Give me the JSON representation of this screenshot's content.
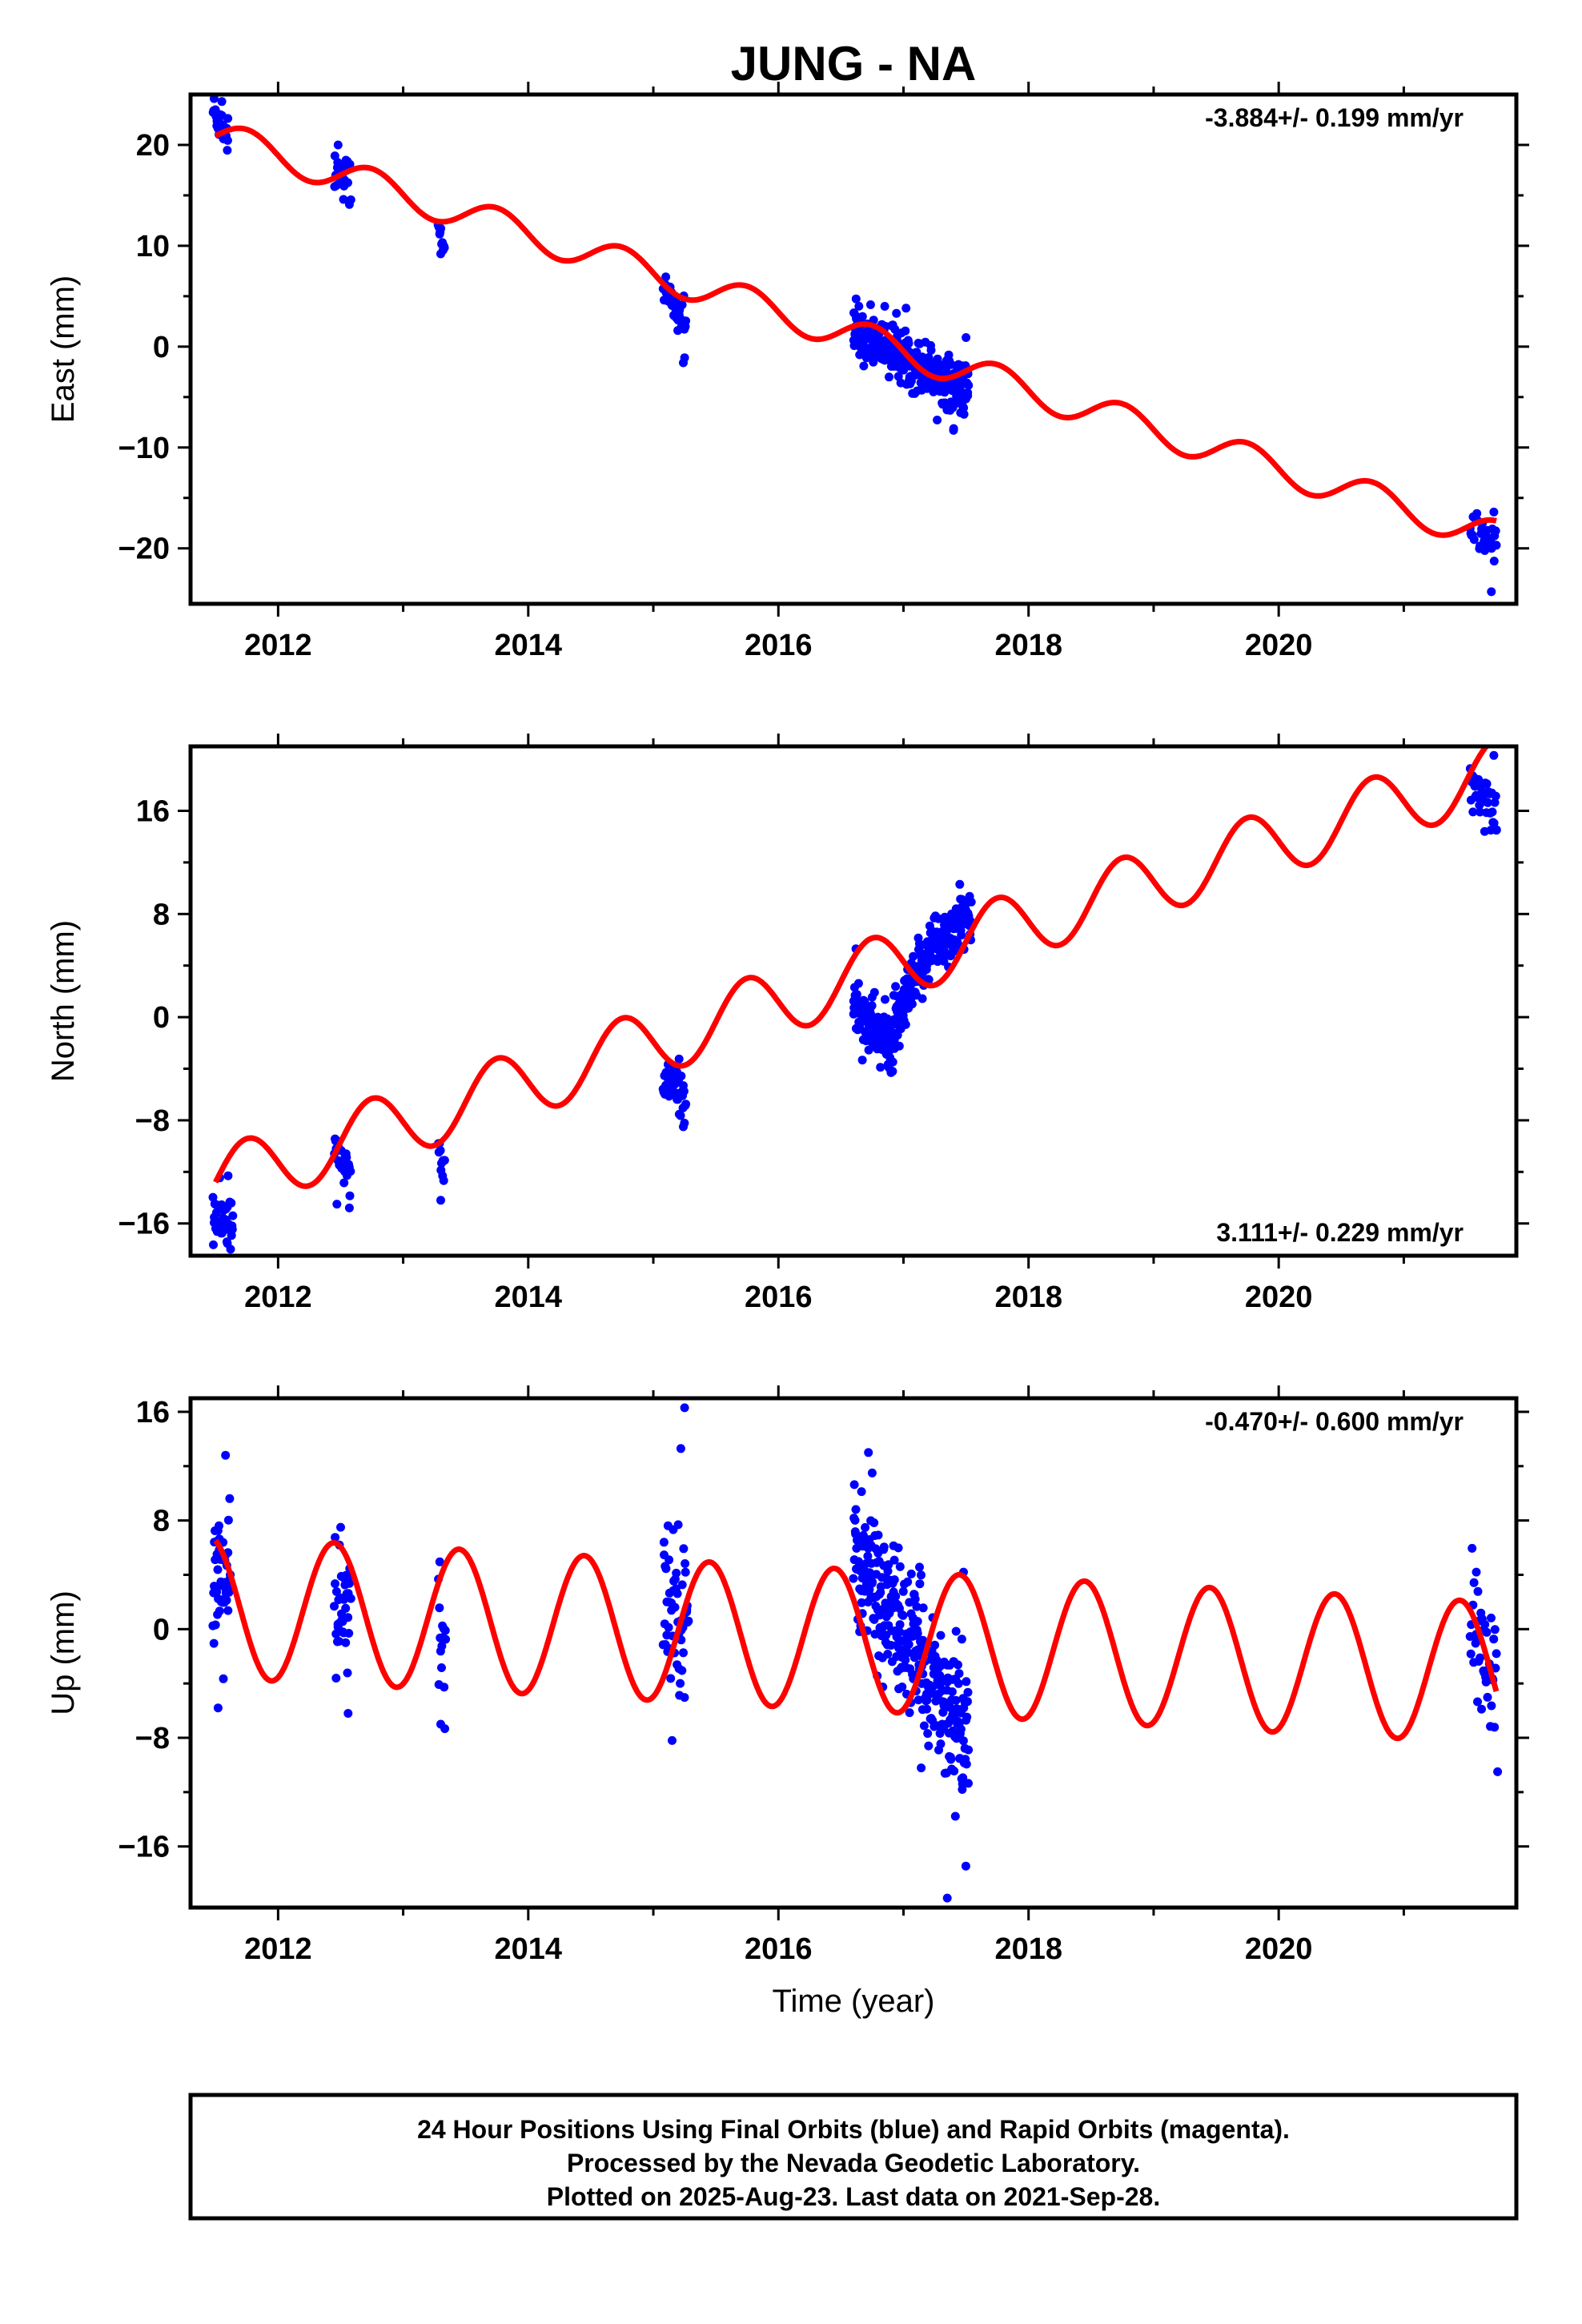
{
  "title": "JUNG - NA",
  "xlabel": "Time (year)",
  "footer": {
    "line1": "24 Hour Positions Using Final Orbits (blue) and Rapid Orbits (magenta).",
    "line2": "Processed by the Nevada Geodetic Laboratory.",
    "line3": "Plotted on 2025-Aug-23. Last data on 2021-Sep-28."
  },
  "colors": {
    "data": "#0000ff",
    "model": "#ff0000",
    "frame": "#000000"
  },
  "chart_data": [
    {
      "type": "scatter",
      "ylabel": "East (mm)",
      "rate": "-3.884+/- 0.199 mm/yr",
      "rate_position": "top-right",
      "xlim": [
        2011.3,
        2021.9
      ],
      "ylim": [
        -25.5,
        25
      ],
      "xticks": [
        2012,
        2014,
        2016,
        2018,
        2020
      ],
      "yticks": [
        20,
        10,
        0,
        -10,
        -20
      ],
      "ytick_labels": [
        "20",
        "10",
        "0",
        "−10",
        "−20"
      ],
      "model": {
        "x0": 2011.5,
        "y0": 20.9,
        "slope": -3.884,
        "amp": 1.6,
        "phase": 0.0
      },
      "clusters": [
        {
          "t0": 2011.48,
          "t1": 2011.6,
          "n": 35,
          "mu": [
            23.5,
            20.8
          ],
          "sd": 0.9,
          "outliers": [
            [
              2011.55,
              24.3
            ]
          ]
        },
        {
          "t0": 2012.45,
          "t1": 2012.58,
          "n": 25,
          "mu": [
            17.8,
            16.3
          ],
          "sd": 1.2,
          "outliers": [
            [
              2012.48,
              20.0
            ],
            [
              2012.57,
              14.1
            ]
          ]
        },
        {
          "t0": 2013.28,
          "t1": 2013.33,
          "n": 10,
          "mu": [
            12.2,
            10.0
          ],
          "sd": 0.7,
          "outliers": [
            [
              2013.3,
              9.2
            ]
          ]
        },
        {
          "t0": 2015.08,
          "t1": 2015.26,
          "n": 40,
          "mu": [
            5.8,
            2.0
          ],
          "sd": 1.0,
          "outliers": [
            [
              2015.24,
              -1.6
            ],
            [
              2015.25,
              -1.1
            ]
          ]
        },
        {
          "t0": 2016.6,
          "t1": 2017.52,
          "n": 330,
          "mu": [
            1.8,
            -4.6
          ],
          "sd": 1.3,
          "outliers": [
            [
              2016.85,
              4.0
            ],
            [
              2017.4,
              -8.3
            ],
            [
              2017.5,
              0.9
            ]
          ]
        },
        {
          "t0": 2021.53,
          "t1": 2021.74,
          "n": 35,
          "mu": [
            -17.7,
            -19.8
          ],
          "sd": 1.0,
          "outliers": [
            [
              2021.7,
              -24.3
            ],
            [
              2021.72,
              -16.4
            ]
          ]
        }
      ]
    },
    {
      "type": "scatter",
      "ylabel": "North (mm)",
      "rate": "3.111+/- 0.229 mm/yr",
      "rate_position": "bottom-right",
      "xlim": [
        2011.3,
        2021.9
      ],
      "ylim": [
        -18.5,
        21
      ],
      "xticks": [
        2012,
        2014,
        2016,
        2018,
        2020
      ],
      "yticks": [
        16,
        8,
        0,
        -8,
        -16
      ],
      "ytick_labels": [
        "16",
        "8",
        "0",
        "−8",
        "−16"
      ],
      "model": {
        "x0": 2011.5,
        "y0": -12.8,
        "slope": 3.111,
        "amp": 2.6,
        "phase": 0.0
      },
      "clusters": [
        {
          "t0": 2011.48,
          "t1": 2011.64,
          "n": 45,
          "mu": [
            -15.6,
            -16.0
          ],
          "sd": 1.0,
          "outliers": [
            [
              2011.6,
              -12.3
            ],
            [
              2011.62,
              -18.0
            ]
          ]
        },
        {
          "t0": 2012.45,
          "t1": 2012.58,
          "n": 25,
          "mu": [
            -10.5,
            -12.0
          ],
          "sd": 1.0,
          "outliers": [
            [
              2012.47,
              -14.5
            ],
            [
              2012.57,
              -14.8
            ]
          ]
        },
        {
          "t0": 2013.28,
          "t1": 2013.33,
          "n": 10,
          "mu": [
            -10.6,
            -12.8
          ],
          "sd": 0.8,
          "outliers": [
            [
              2013.3,
              -14.2
            ]
          ]
        },
        {
          "t0": 2015.08,
          "t1": 2015.26,
          "n": 40,
          "mu": [
            -5.0,
            -6.0
          ],
          "sd": 1.0,
          "outliers": [
            [
              2015.24,
              -8.5
            ]
          ]
        },
        {
          "t0": 2016.6,
          "t1": 2017.54,
          "n": 330,
          "mu": [
            2.0,
            7.5
          ],
          "dip": 3.6,
          "dip_t": 2016.88,
          "sd": 1.2,
          "outliers": [
            [
              2016.62,
              5.3
            ],
            [
              2016.9,
              -4.3
            ],
            [
              2017.45,
              10.3
            ]
          ]
        },
        {
          "t0": 2021.53,
          "t1": 2021.74,
          "n": 35,
          "mu": [
            18.0,
            16.0
          ],
          "sd": 1.0,
          "outliers": [
            [
              2021.72,
              20.3
            ],
            [
              2021.74,
              14.5
            ]
          ]
        }
      ]
    },
    {
      "type": "scatter",
      "ylabel": "Up (mm)",
      "rate": "-0.470+/- 0.600 mm/yr",
      "rate_position": "top-right",
      "xlim": [
        2011.3,
        2021.9
      ],
      "ylim": [
        -20.5,
        17
      ],
      "xticks": [
        2012,
        2014,
        2016,
        2018,
        2020
      ],
      "yticks": [
        16,
        8,
        0,
        -8,
        -16
      ],
      "ytick_labels": [
        "16",
        "8",
        "0",
        "−8",
        "−16"
      ],
      "model": {
        "x0": 2011.5,
        "y0": 1.6,
        "slope": -0.47,
        "amp": 5.2,
        "phase": 1.9
      },
      "clusters": [
        {
          "t0": 2011.48,
          "t1": 2011.62,
          "n": 50,
          "mu": [
            4.0,
            3.5
          ],
          "sd": 2.6,
          "outliers": [
            [
              2011.52,
              -5.8
            ],
            [
              2011.58,
              12.8
            ]
          ]
        },
        {
          "t0": 2012.45,
          "t1": 2012.58,
          "n": 35,
          "mu": [
            1.5,
            0.5
          ],
          "sd": 2.6,
          "outliers": [
            [
              2012.5,
              7.5
            ],
            [
              2012.56,
              -6.2
            ]
          ]
        },
        {
          "t0": 2013.28,
          "t1": 2013.34,
          "n": 15,
          "mu": [
            1.0,
            -3.0
          ],
          "sd": 2.6,
          "outliers": [
            [
              2013.3,
              -7.0
            ]
          ]
        },
        {
          "t0": 2015.08,
          "t1": 2015.28,
          "n": 55,
          "mu": [
            2.5,
            1.5
          ],
          "sd": 3.0,
          "outliers": [
            [
              2015.25,
              16.3
            ],
            [
              2015.22,
              13.3
            ],
            [
              2015.15,
              -8.2
            ]
          ]
        },
        {
          "t0": 2016.6,
          "t1": 2017.52,
          "n": 330,
          "mu": [
            5.5,
            -8.0
          ],
          "sd": 2.6,
          "outliers": [
            [
              2016.72,
              13.0
            ],
            [
              2016.75,
              11.5
            ],
            [
              2017.35,
              -19.8
            ],
            [
              2017.48,
              4.2
            ]
          ]
        },
        {
          "t0": 2021.53,
          "t1": 2021.74,
          "n": 40,
          "mu": [
            0.0,
            -4.0
          ],
          "sd": 2.4,
          "outliers": [
            [
              2021.58,
              4.2
            ],
            [
              2021.75,
              -10.5
            ]
          ]
        }
      ]
    }
  ]
}
